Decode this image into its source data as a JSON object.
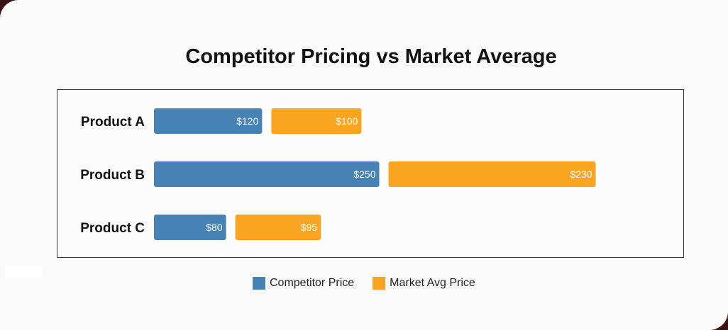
{
  "chart_data": {
    "type": "bar",
    "orientation": "horizontal",
    "title": "Competitor Pricing vs Market Average",
    "categories": [
      "Product A",
      "Product B",
      "Product C"
    ],
    "series": [
      {
        "name": "Competitor Price",
        "values": [
          120,
          250,
          80
        ],
        "labels": [
          "$120",
          "$250",
          "$80"
        ],
        "color": "#4682b4"
      },
      {
        "name": "Market Avg Price",
        "values": [
          100,
          230,
          95
        ],
        "labels": [
          "$100",
          "$230",
          "$95"
        ],
        "color": "#f9a521"
      }
    ],
    "legend_position": "bottom-center",
    "grid": false
  }
}
